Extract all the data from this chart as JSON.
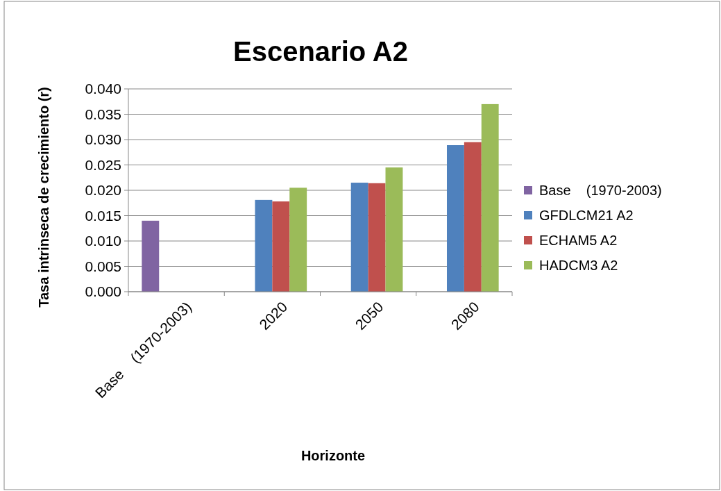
{
  "chart_data": {
    "type": "bar",
    "title": "Escenario A2",
    "xlabel": "Horizonte",
    "ylabel": "Tasa intrinseca de crecimiento (r)",
    "categories": [
      "Base    (1970-2003)",
      "2020",
      "2050",
      "2080"
    ],
    "series": [
      {
        "name": "Base    (1970-2003)",
        "color": "#8064a2",
        "values": [
          0.014,
          null,
          null,
          null
        ]
      },
      {
        "name": "GFDLCM21 A2",
        "color": "#4f81bd",
        "values": [
          null,
          0.0181,
          0.0215,
          0.0289
        ]
      },
      {
        "name": "ECHAM5 A2",
        "color": "#c0504d",
        "values": [
          null,
          0.0178,
          0.0214,
          0.0295
        ]
      },
      {
        "name": "HADCM3 A2",
        "color": "#9bbb59",
        "values": [
          null,
          0.0205,
          0.0245,
          0.037
        ]
      }
    ],
    "ylim": [
      0,
      0.04
    ],
    "yticks": [
      {
        "value": 0,
        "label": "0.000"
      },
      {
        "value": 0.005,
        "label": "0.005"
      },
      {
        "value": 0.01,
        "label": "0.010"
      },
      {
        "value": 0.015,
        "label": "0.015"
      },
      {
        "value": 0.02,
        "label": "0.020"
      },
      {
        "value": 0.025,
        "label": "0.025"
      },
      {
        "value": 0.03,
        "label": "0.030"
      },
      {
        "value": 0.035,
        "label": "0.035"
      },
      {
        "value": 0.04,
        "label": "0.040"
      }
    ],
    "grid": "y",
    "legend": "right"
  }
}
